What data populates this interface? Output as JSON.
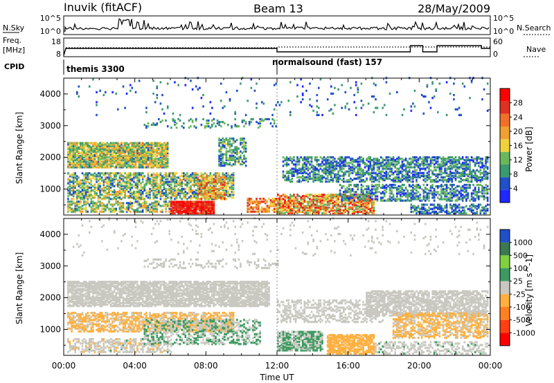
{
  "header": {
    "station": "Inuvik (fitACF)",
    "beam": "Beam 13",
    "date": "28/May/2009"
  },
  "top_strip": {
    "left_label": "N.Sky",
    "right_label": "N.Search",
    "left_ticks": [
      "10^5",
      "10^0"
    ],
    "right_ticks": [
      "10^5",
      "10^0"
    ]
  },
  "freq_strip": {
    "left_label_1": "Freq.",
    "left_label_2": "[MHz]",
    "right_label": "Nave",
    "left_ticks": [
      "18",
      "8"
    ],
    "right_ticks": [
      "60",
      "0"
    ]
  },
  "cpid": {
    "label": "CPID",
    "segments": [
      {
        "text": "themis 3300",
        "start_hour": 0
      },
      {
        "text": "normalsound (fast) 157",
        "start_hour": 12
      }
    ]
  },
  "colors": {
    "power": [
      "#1e28ff",
      "#2050c8",
      "#3c9a70",
      "#6ab85c",
      "#f0d23c",
      "#f0a030",
      "#f07028",
      "#e03020",
      "#ff0000"
    ],
    "velocity": [
      "#ff0000",
      "#ff4010",
      "#ff8020",
      "#ffb040",
      "#c8c8c0",
      "#3c9a60",
      "#80d040",
      "#3c7850",
      "#2050c8"
    ]
  },
  "chart_data": [
    {
      "type": "heatmap",
      "title": "",
      "ylabel": "Slant Range [km]",
      "xlabel": "",
      "xlim_hours": [
        0,
        24
      ],
      "ylim": [
        180,
        4500
      ],
      "yticks": [
        "1000",
        "2000",
        "3000",
        "4000"
      ],
      "colorbar": {
        "label": "Power [dB]",
        "ticks": [
          "4",
          "8",
          "12",
          "16",
          "20",
          "24",
          "28"
        ],
        "range": [
          0,
          32
        ]
      },
      "bands": [
        {
          "t0": 0.2,
          "t1": 5.8,
          "r0": 1650,
          "r1": 2450,
          "lo": 6,
          "hi": 22,
          "d": 0.85
        },
        {
          "t0": 0.2,
          "t1": 9.5,
          "r0": 650,
          "r1": 1500,
          "lo": 4,
          "hi": 20,
          "d": 0.6
        },
        {
          "t0": 0.2,
          "t1": 6.0,
          "r0": 250,
          "r1": 600,
          "lo": 6,
          "hi": 20,
          "d": 0.55
        },
        {
          "t0": 6.0,
          "t1": 8.4,
          "r0": 200,
          "r1": 600,
          "lo": 24,
          "hi": 32,
          "d": 0.95
        },
        {
          "t0": 7.5,
          "t1": 9.0,
          "r0": 650,
          "r1": 1400,
          "lo": 12,
          "hi": 28,
          "d": 0.6
        },
        {
          "t0": 8.7,
          "t1": 10.2,
          "r0": 1700,
          "r1": 2600,
          "lo": 4,
          "hi": 16,
          "d": 0.55
        },
        {
          "t0": 10.3,
          "t1": 12.2,
          "r0": 250,
          "r1": 700,
          "lo": 14,
          "hi": 28,
          "d": 0.6
        },
        {
          "t0": 12.0,
          "t1": 17.5,
          "r0": 200,
          "r1": 800,
          "lo": 10,
          "hi": 30,
          "d": 0.7
        },
        {
          "t0": 12.3,
          "t1": 24.0,
          "r0": 1200,
          "r1": 2000,
          "lo": 2,
          "hi": 14,
          "d": 0.55
        },
        {
          "t0": 15.5,
          "t1": 24.0,
          "r0": 600,
          "r1": 1100,
          "lo": 2,
          "hi": 14,
          "d": 0.5
        },
        {
          "t0": 19.5,
          "t1": 24.0,
          "r0": 200,
          "r1": 500,
          "lo": 2,
          "hi": 12,
          "d": 0.5
        },
        {
          "t0": 4.5,
          "t1": 12.0,
          "r0": 2900,
          "r1": 3200,
          "lo": 4,
          "hi": 14,
          "d": 0.2
        },
        {
          "t0": 0.5,
          "t1": 24.0,
          "r0": 3300,
          "r1": 4500,
          "lo": 2,
          "hi": 10,
          "d": 0.03
        }
      ]
    },
    {
      "type": "heatmap",
      "title": "",
      "ylabel": "Slant Range [km]",
      "xlabel": "Time UT",
      "xlim_hours": [
        0,
        24
      ],
      "ylim": [
        180,
        4500
      ],
      "xticks": [
        "00:00",
        "04:00",
        "08:00",
        "12:00",
        "16:00",
        "20:00",
        "00:00"
      ],
      "yticks": [
        "1000",
        "2000",
        "3000",
        "4000"
      ],
      "colorbar": {
        "label": "Velocity [m s^-1]",
        "ticks": [
          "-1000",
          "-500",
          "-100",
          "-25",
          "25",
          "100",
          "500",
          "1000"
        ],
        "range": [
          -1200,
          1200
        ]
      },
      "bands": [
        {
          "t0": 0.2,
          "t1": 11.5,
          "r0": 1700,
          "r1": 2500,
          "lo": -20,
          "hi": 20,
          "d": 0.8
        },
        {
          "t0": 0.2,
          "t1": 9.5,
          "r0": 900,
          "r1": 1500,
          "lo": -300,
          "hi": -60,
          "d": 0.6
        },
        {
          "t0": 0.2,
          "t1": 6.0,
          "r0": 250,
          "r1": 700,
          "lo": -200,
          "hi": 150,
          "d": 0.5
        },
        {
          "t0": 4.5,
          "t1": 11.0,
          "r0": 500,
          "r1": 1300,
          "lo": -20,
          "hi": 300,
          "d": 0.45
        },
        {
          "t0": 12.0,
          "t1": 14.5,
          "r0": 300,
          "r1": 900,
          "lo": 80,
          "hi": 200,
          "d": 0.8
        },
        {
          "t0": 14.8,
          "t1": 17.5,
          "r0": 200,
          "r1": 800,
          "lo": -400,
          "hi": -150,
          "d": 0.75
        },
        {
          "t0": 12.0,
          "t1": 18.0,
          "r0": 1200,
          "r1": 1900,
          "lo": -20,
          "hi": 20,
          "d": 0.4
        },
        {
          "t0": 17.0,
          "t1": 24.0,
          "r0": 1400,
          "r1": 2200,
          "lo": -20,
          "hi": 20,
          "d": 0.7
        },
        {
          "t0": 18.5,
          "t1": 24.0,
          "r0": 700,
          "r1": 1500,
          "lo": -300,
          "hi": -50,
          "d": 0.55
        },
        {
          "t0": 17.5,
          "t1": 24.0,
          "r0": 200,
          "r1": 600,
          "lo": -30,
          "hi": 150,
          "d": 0.35
        },
        {
          "t0": 4.5,
          "t1": 12.0,
          "r0": 2900,
          "r1": 3200,
          "lo": -20,
          "hi": 20,
          "d": 0.2
        },
        {
          "t0": 0.5,
          "t1": 24.0,
          "r0": 3300,
          "r1": 4500,
          "lo": -30,
          "hi": 30,
          "d": 0.03
        }
      ]
    }
  ]
}
